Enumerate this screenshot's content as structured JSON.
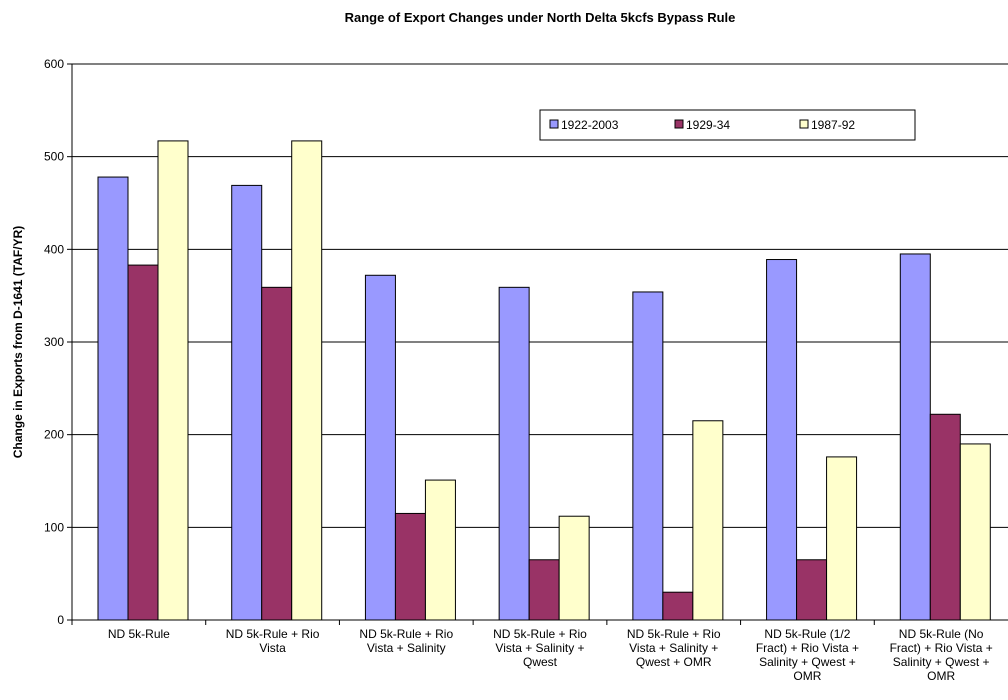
{
  "chart_data": {
    "type": "bar",
    "title": "Range of Export Changes under North Delta 5kcfs Bypass Rule",
    "y_label": "Change in Exports from D-1641 (TAF/YR)",
    "categories": [
      "ND 5k-Rule",
      "ND 5k-Rule + Rio Vista",
      "ND 5k-Rule + Rio Vista + Salinity",
      "ND 5k-Rule + Rio Vista + Salinity + Qwest",
      "ND 5k-Rule + Rio Vista + Salinity + Qwest + OMR",
      "ND 5k-Rule (1/2 Fract) + Rio Vista + Salinity + Qwest + OMR",
      "ND 5k-Rule (No Fract) + Rio Vista + Salinity + Qwest + OMR"
    ],
    "series": [
      {
        "name": "1922-2003",
        "color": "#9999ff",
        "values": [
          478,
          469,
          372,
          359,
          354,
          389,
          395
        ]
      },
      {
        "name": "1929-34",
        "color": "#993366",
        "values": [
          383,
          359,
          115,
          65,
          30,
          65,
          222
        ]
      },
      {
        "name": "1987-92",
        "color": "#ffffcc",
        "values": [
          517,
          517,
          151,
          112,
          215,
          176,
          190
        ]
      }
    ],
    "ylim": [
      0,
      600
    ],
    "yticks": [
      0,
      100,
      200,
      300,
      400,
      500,
      600
    ],
    "grid": true
  }
}
